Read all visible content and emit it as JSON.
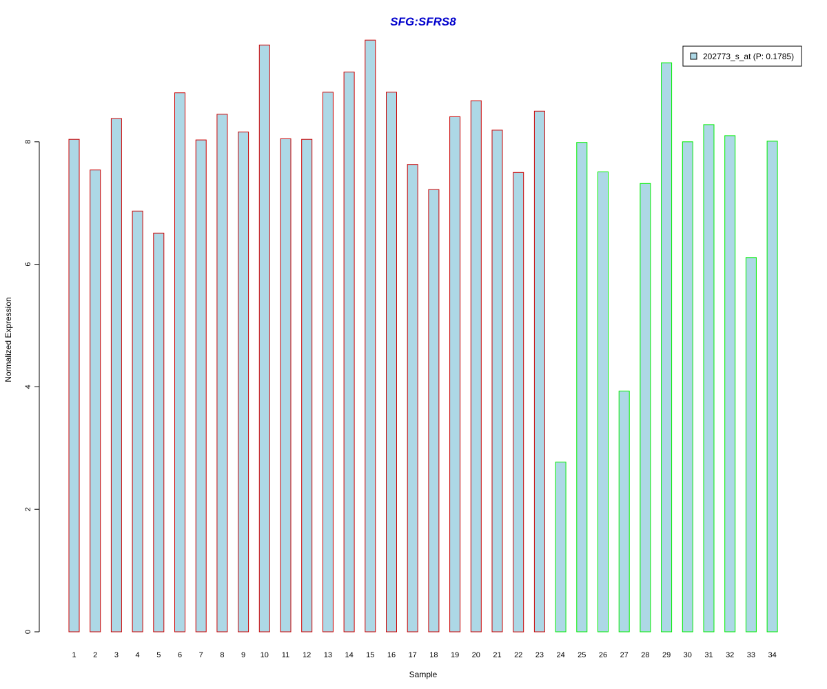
{
  "chart_data": {
    "type": "bar",
    "title": "SFG:SFRS8",
    "xlabel": "Sample",
    "ylabel": "Normalized Expression",
    "ylim": [
      0,
      9.7
    ],
    "yticks": [
      0,
      2,
      4,
      6,
      8
    ],
    "grid": false,
    "legend_position": "top-right",
    "categories": [
      "1",
      "2",
      "3",
      "4",
      "5",
      "6",
      "7",
      "8",
      "9",
      "10",
      "11",
      "12",
      "13",
      "14",
      "15",
      "16",
      "17",
      "18",
      "19",
      "20",
      "21",
      "22",
      "23",
      "24",
      "25",
      "26",
      "27",
      "28",
      "29",
      "30",
      "31",
      "32",
      "33",
      "34"
    ],
    "series": [
      {
        "name": "202773_s_at (P: 0.1785)",
        "values": [
          8.04,
          7.54,
          8.38,
          6.87,
          6.51,
          8.8,
          8.03,
          8.45,
          8.16,
          9.58,
          8.05,
          8.04,
          8.81,
          9.14,
          9.66,
          8.81,
          7.63,
          7.22,
          8.41,
          8.67,
          8.19,
          7.5,
          8.5,
          2.77,
          7.99,
          7.51,
          3.93,
          7.32,
          9.29,
          8.0,
          8.28,
          8.1,
          6.11,
          8.01
        ]
      }
    ],
    "group_sizes": [
      23,
      11
    ]
  },
  "colors": {
    "title": "#0000cc",
    "bar_fill": "#add8e6",
    "group1_border": "#cc0000",
    "group2_border": "#00ee00",
    "axis": "#000000",
    "legend_border": "#000000"
  }
}
